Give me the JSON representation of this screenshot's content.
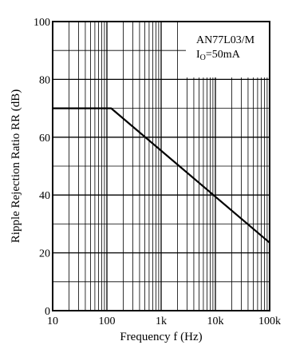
{
  "chart_data": {
    "type": "line",
    "title": "",
    "xlabel": "Frequency  f (Hz)",
    "ylabel": "Ripple Rejection Ratio  RR (dB)",
    "x_scale": "log",
    "xlim": [
      10,
      100000
    ],
    "ylim": [
      0,
      100
    ],
    "x_tick_labels": [
      "10",
      "100",
      "1k",
      "10k",
      "100k"
    ],
    "y_tick_labels": [
      "0",
      "20",
      "40",
      "60",
      "80",
      "100"
    ],
    "grid": true,
    "annotation": {
      "line1": "AN77L03/M",
      "line2_main": "I",
      "line2_sub": "O",
      "line2_rest": "=50mA"
    },
    "series": [
      {
        "x": [
          10,
          120,
          100000
        ],
        "y": [
          70,
          70,
          23.5
        ],
        "color": "#000000"
      }
    ]
  }
}
